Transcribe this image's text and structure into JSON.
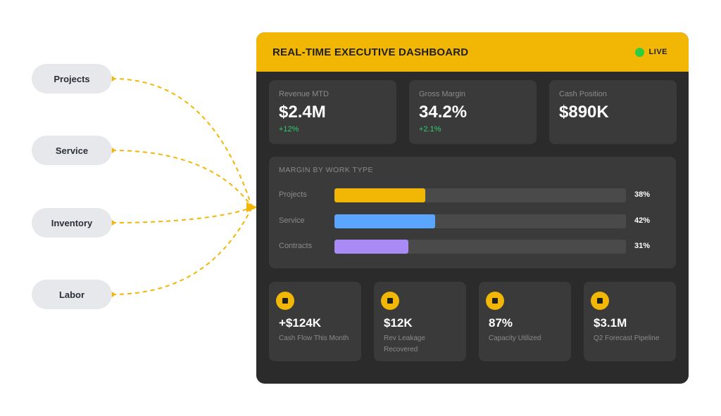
{
  "sources": [
    {
      "label": "Projects"
    },
    {
      "label": "Service"
    },
    {
      "label": "Inventory"
    },
    {
      "label": "Labor"
    }
  ],
  "colors": {
    "accent": "#f2b705",
    "panel": "#2b2b2b",
    "card": "#3a3a3a",
    "positive": "#2ecc71",
    "live": "#2ecc40",
    "connector": "#f2b705"
  },
  "dashboard": {
    "title": "REAL-TIME EXECUTIVE DASHBOARD",
    "status": "LIVE",
    "kpis": [
      {
        "label": "Revenue MTD",
        "value": "$2.4M",
        "change": "+12%"
      },
      {
        "label": "Gross Margin",
        "value": "34.2%",
        "change": "+2.1%"
      },
      {
        "label": "Cash Position",
        "value": "$890K",
        "change": ""
      }
    ],
    "margin": {
      "title": "MARGIN BY WORK TYPE",
      "rows": [
        {
          "label": "Projects",
          "value": "38%",
          "color": "#f2b705"
        },
        {
          "label": "Service",
          "value": "42%",
          "color": "#5aa5ff"
        },
        {
          "label": "Contracts",
          "value": "31%",
          "color": "#a98bf5"
        }
      ]
    },
    "stats": [
      {
        "value": "+$124K",
        "label": "Cash Flow This Month",
        "icon": "stop-icon"
      },
      {
        "value": "$12K",
        "label": "Rev Leakage Recovered",
        "icon": "stop-icon"
      },
      {
        "value": "87%",
        "label": "Capacity Utilized",
        "icon": "stop-icon"
      },
      {
        "value": "$3.1M",
        "label": "Q2 Forecast Pipeline",
        "icon": "stop-icon"
      }
    ]
  }
}
